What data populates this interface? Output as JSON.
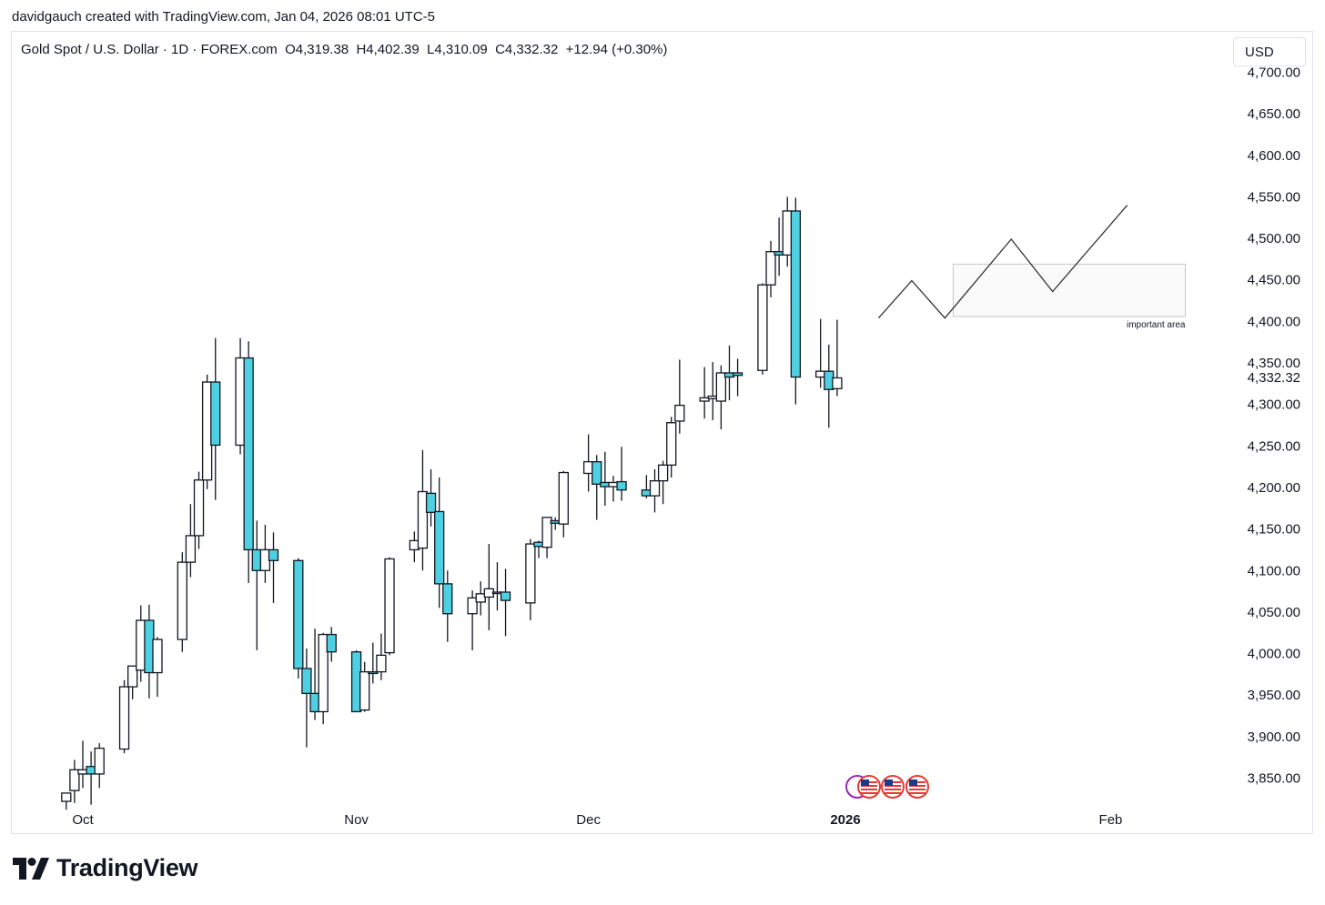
{
  "header": {
    "attribution": "davidgauch created with TradingView.com, Jan 04, 2026 08:01 UTC-5"
  },
  "legend": {
    "text": "Gold Spot / U.S. Dollar · 1D · FOREX.com  O4,319.38  H4,402.39  L4,310.09  C4,332.32  +12.94 (+0.30%)"
  },
  "currency_button": {
    "label": "USD"
  },
  "brand": {
    "name": "TradingView"
  },
  "colors": {
    "down": "#4dd0e1",
    "up": "#ffffff",
    "wick": "#131722",
    "projection": "#333333"
  },
  "icons": [
    "event-icon",
    "us-flag-icon",
    "us-flag-icon",
    "us-flag-icon"
  ],
  "chart_data": {
    "type": "candlestick",
    "title": "Gold Spot / U.S. Dollar · 1D · FOREX.com",
    "ylim": [
      3810,
      4722
    ],
    "y_ticks": [
      3850,
      3900,
      3950,
      4000,
      4050,
      4100,
      4150,
      4200,
      4250,
      4300,
      4350,
      4400,
      4450,
      4500,
      4550,
      4600,
      4650,
      4700
    ],
    "y_tick_labels": [
      "3,850.00",
      "3,900.00",
      "3,950.00",
      "4,000.00",
      "4,050.00",
      "4,100.00",
      "4,150.00",
      "4,200.00",
      "4,250.00",
      "4,300.00",
      "4,350.00",
      "4,400.00",
      "4,450.00",
      "4,500.00",
      "4,550.00",
      "4,600.00",
      "4,650.00",
      "4,700.00"
    ],
    "last_price_label": "4,332.32",
    "last_price": 4332.32,
    "x_ticks": [
      {
        "label": "Oct",
        "date": "2025-10-01",
        "bold": false
      },
      {
        "label": "Nov",
        "date": "2025-11-03",
        "bold": false
      },
      {
        "label": "Dec",
        "date": "2025-12-01",
        "bold": false
      },
      {
        "label": "2026",
        "date": "2026-01-01",
        "bold": true
      },
      {
        "label": "Feb",
        "date": "2026-02-02",
        "bold": false
      }
    ],
    "candles": [
      {
        "d": "2025-09-29",
        "o": 3822,
        "h": 3832,
        "l": 3812,
        "c": 3832
      },
      {
        "d": "2025-09-30",
        "o": 3835,
        "h": 3872,
        "l": 3820,
        "c": 3860
      },
      {
        "d": "2025-10-01",
        "o": 3855,
        "h": 3895,
        "l": 3838,
        "c": 3860
      },
      {
        "d": "2025-10-02",
        "o": 3864,
        "h": 3882,
        "l": 3818,
        "c": 3855
      },
      {
        "d": "2025-10-03",
        "o": 3855,
        "h": 3892,
        "l": 3838,
        "c": 3886
      },
      {
        "d": "2025-10-06",
        "o": 3885,
        "h": 3968,
        "l": 3880,
        "c": 3960
      },
      {
        "d": "2025-10-07",
        "o": 3960,
        "h": 3983,
        "l": 3945,
        "c": 3985
      },
      {
        "d": "2025-10-08",
        "o": 3980,
        "h": 4058,
        "l": 3966,
        "c": 4040
      },
      {
        "d": "2025-10-09",
        "o": 4040,
        "h": 4059,
        "l": 3946,
        "c": 3977
      },
      {
        "d": "2025-10-10",
        "o": 3977,
        "h": 4020,
        "l": 3948,
        "c": 4017
      },
      {
        "d": "2025-10-13",
        "o": 4017,
        "h": 4122,
        "l": 4002,
        "c": 4110
      },
      {
        "d": "2025-10-14",
        "o": 4110,
        "h": 4180,
        "l": 4092,
        "c": 4142
      },
      {
        "d": "2025-10-15",
        "o": 4142,
        "h": 4219,
        "l": 4126,
        "c": 4209
      },
      {
        "d": "2025-10-16",
        "o": 4209,
        "h": 4336,
        "l": 4198,
        "c": 4327
      },
      {
        "d": "2025-10-17",
        "o": 4327,
        "h": 4380,
        "l": 4185,
        "c": 4251
      },
      {
        "d": "2025-10-20",
        "o": 4251,
        "h": 4380,
        "l": 4240,
        "c": 4356
      },
      {
        "d": "2025-10-21",
        "o": 4356,
        "h": 4376,
        "l": 4085,
        "c": 4125
      },
      {
        "d": "2025-10-22",
        "o": 4125,
        "h": 4160,
        "l": 4004,
        "c": 4100
      },
      {
        "d": "2025-10-23",
        "o": 4100,
        "h": 4155,
        "l": 4085,
        "c": 4125
      },
      {
        "d": "2025-10-24",
        "o": 4125,
        "h": 4146,
        "l": 4061,
        "c": 4112
      },
      {
        "d": "2025-10-27",
        "o": 4112,
        "h": 4115,
        "l": 3970,
        "c": 3982
      },
      {
        "d": "2025-10-28",
        "o": 3982,
        "h": 4006,
        "l": 3887,
        "c": 3952
      },
      {
        "d": "2025-10-29",
        "o": 3952,
        "h": 4030,
        "l": 3920,
        "c": 3930
      },
      {
        "d": "2025-10-30",
        "o": 3930,
        "h": 4025,
        "l": 3915,
        "c": 4023
      },
      {
        "d": "2025-10-31",
        "o": 4023,
        "h": 4032,
        "l": 3990,
        "c": 4002
      },
      {
        "d": "2025-11-03",
        "o": 4002,
        "h": 4004,
        "l": 3930,
        "c": 3930
      },
      {
        "d": "2025-11-04",
        "o": 3932,
        "h": 3990,
        "l": 3930,
        "c": 3978
      },
      {
        "d": "2025-11-05",
        "o": 3978,
        "h": 4013,
        "l": 3964,
        "c": 3976
      },
      {
        "d": "2025-11-06",
        "o": 3978,
        "h": 4024,
        "l": 3968,
        "c": 3998
      },
      {
        "d": "2025-11-07",
        "o": 4001,
        "h": 4116,
        "l": 3998,
        "c": 4114
      },
      {
        "d": "2025-11-10",
        "o": 4125,
        "h": 4147,
        "l": 4110,
        "c": 4136
      },
      {
        "d": "2025-11-11",
        "o": 4127,
        "h": 4245,
        "l": 4100,
        "c": 4195
      },
      {
        "d": "2025-11-12",
        "o": 4193,
        "h": 4222,
        "l": 4153,
        "c": 4170
      },
      {
        "d": "2025-11-13",
        "o": 4171,
        "h": 4212,
        "l": 4055,
        "c": 4084
      },
      {
        "d": "2025-11-14",
        "o": 4084,
        "h": 4100,
        "l": 4014,
        "c": 4048
      },
      {
        "d": "2025-11-17",
        "o": 4048,
        "h": 4076,
        "l": 4004,
        "c": 4067
      },
      {
        "d": "2025-11-18",
        "o": 4062,
        "h": 4087,
        "l": 4046,
        "c": 4072
      },
      {
        "d": "2025-11-19",
        "o": 4068,
        "h": 4132,
        "l": 4028,
        "c": 4078
      },
      {
        "d": "2025-11-20",
        "o": 4074,
        "h": 4110,
        "l": 4052,
        "c": 4074
      },
      {
        "d": "2025-11-21",
        "o": 4074,
        "h": 4102,
        "l": 4021,
        "c": 4064
      },
      {
        "d": "2025-11-24",
        "o": 4061,
        "h": 4138,
        "l": 4040,
        "c": 4132
      },
      {
        "d": "2025-11-25",
        "o": 4134,
        "h": 4136,
        "l": 4115,
        "c": 4129
      },
      {
        "d": "2025-11-26",
        "o": 4128,
        "h": 4163,
        "l": 4115,
        "c": 4164
      },
      {
        "d": "2025-11-27",
        "o": 4160,
        "h": 4164,
        "l": 4149,
        "c": 4157
      },
      {
        "d": "2025-11-28",
        "o": 4156,
        "h": 4220,
        "l": 4140,
        "c": 4218
      },
      {
        "d": "2025-12-01",
        "o": 4217,
        "h": 4264,
        "l": 4195,
        "c": 4231
      },
      {
        "d": "2025-12-02",
        "o": 4231,
        "h": 4239,
        "l": 4161,
        "c": 4204
      },
      {
        "d": "2025-12-03",
        "o": 4206,
        "h": 4243,
        "l": 4178,
        "c": 4201
      },
      {
        "d": "2025-12-04",
        "o": 4201,
        "h": 4214,
        "l": 4183,
        "c": 4206
      },
      {
        "d": "2025-12-05",
        "o": 4207,
        "h": 4249,
        "l": 4184,
        "c": 4197
      },
      {
        "d": "2025-12-08",
        "o": 4197,
        "h": 4215,
        "l": 4187,
        "c": 4190
      },
      {
        "d": "2025-12-09",
        "o": 4190,
        "h": 4222,
        "l": 4170,
        "c": 4208
      },
      {
        "d": "2025-12-10",
        "o": 4208,
        "h": 4232,
        "l": 4180,
        "c": 4227
      },
      {
        "d": "2025-12-11",
        "o": 4227,
        "h": 4285,
        "l": 4212,
        "c": 4278
      },
      {
        "d": "2025-12-12",
        "o": 4280,
        "h": 4354,
        "l": 4265,
        "c": 4299
      },
      {
        "d": "2025-12-15",
        "o": 4304,
        "h": 4345,
        "l": 4283,
        "c": 4308
      },
      {
        "d": "2025-12-16",
        "o": 4307,
        "h": 4351,
        "l": 4281,
        "c": 4310
      },
      {
        "d": "2025-12-17",
        "o": 4304,
        "h": 4347,
        "l": 4270,
        "c": 4338
      },
      {
        "d": "2025-12-18",
        "o": 4338,
        "h": 4371,
        "l": 4305,
        "c": 4333
      },
      {
        "d": "2025-12-19",
        "o": 4338,
        "h": 4355,
        "l": 4310,
        "c": 4335
      },
      {
        "d": "2025-12-22",
        "o": 4341,
        "h": 4446,
        "l": 4336,
        "c": 4444
      },
      {
        "d": "2025-12-23",
        "o": 4444,
        "h": 4497,
        "l": 4429,
        "c": 4484
      },
      {
        "d": "2025-12-24",
        "o": 4484,
        "h": 4525,
        "l": 4455,
        "c": 4480
      },
      {
        "d": "2025-12-25",
        "o": 4480,
        "h": 4550,
        "l": 4466,
        "c": 4533
      },
      {
        "d": "2025-12-26",
        "o": 4533,
        "h": 4549,
        "l": 4300,
        "c": 4333
      },
      {
        "d": "2025-12-29",
        "o": 4333,
        "h": 4403,
        "l": 4320,
        "c": 4340
      },
      {
        "d": "2025-12-30",
        "o": 4340,
        "h": 4372,
        "l": 4272,
        "c": 4318
      },
      {
        "d": "2025-12-31",
        "o": 4319,
        "h": 4402,
        "l": 4310,
        "c": 4332
      }
    ],
    "projection": [
      {
        "d": "2026-01-05",
        "y": 4404
      },
      {
        "d": "2026-01-09",
        "y": 4449
      },
      {
        "d": "2026-01-13",
        "y": 4404
      },
      {
        "d": "2026-01-21",
        "y": 4499
      },
      {
        "d": "2026-01-26",
        "y": 4436
      },
      {
        "d": "2026-02-04",
        "y": 4540
      }
    ],
    "zone": {
      "label": "important area",
      "start": "2026-01-14",
      "end": "2026-02-11",
      "low": 4406,
      "high": 4469
    }
  }
}
